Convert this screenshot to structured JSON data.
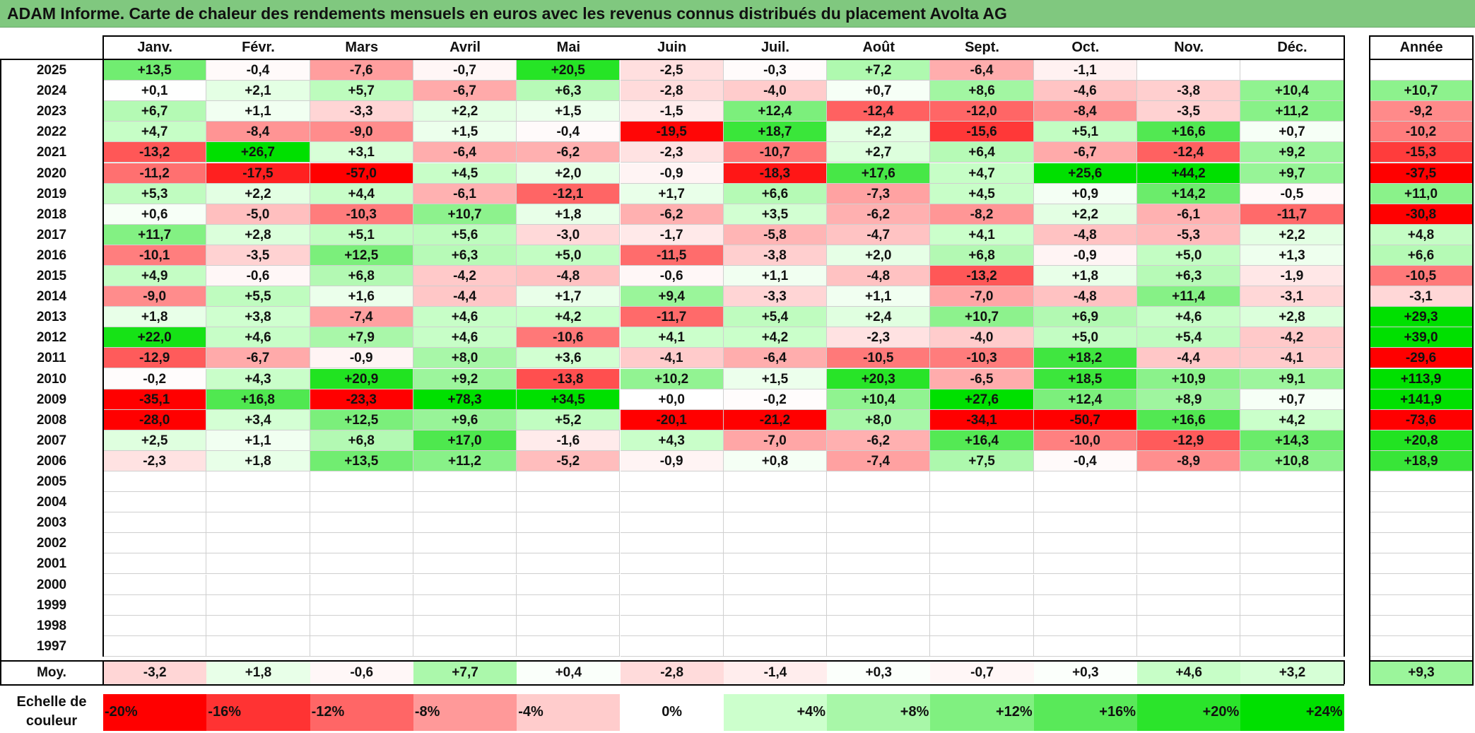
{
  "title": "ADAM Informe. Carte de chaleur des rendements mensuels en euros avec les revenus connus distribués du placement Avolta AG",
  "months": [
    "Janv.",
    "Févr.",
    "Mars",
    "Avril",
    "Mai",
    "Juin",
    "Juil.",
    "Août",
    "Sept.",
    "Oct.",
    "Nov.",
    "Déc."
  ],
  "year_header": "Année",
  "average_label": "Moy.",
  "scale_label": "Echelle de couleur",
  "chart_data": {
    "type": "heatmap",
    "title": "ADAM Informe. Carte de chaleur des rendements mensuels en euros avec les revenus connus distribués du placement Avolta AG",
    "columns": [
      "Janv.",
      "Févr.",
      "Mars",
      "Avril",
      "Mai",
      "Juin",
      "Juil.",
      "Août",
      "Sept.",
      "Oct.",
      "Nov.",
      "Déc."
    ],
    "rows": [
      {
        "year": "2025",
        "months": [
          "+13,5",
          "-0,4",
          "-7,6",
          "-0,7",
          "+20,5",
          "-2,5",
          "-0,3",
          "+7,2",
          "-6,4",
          "-1,1",
          "",
          ""
        ],
        "annual": ""
      },
      {
        "year": "2024",
        "months": [
          "+0,1",
          "+2,1",
          "+5,7",
          "-6,7",
          "+6,3",
          "-2,8",
          "-4,0",
          "+0,7",
          "+8,6",
          "-4,6",
          "-3,8",
          "+10,4"
        ],
        "annual": "+10,7"
      },
      {
        "year": "2023",
        "months": [
          "+6,7",
          "+1,1",
          "-3,3",
          "+2,2",
          "+1,5",
          "-1,5",
          "+12,4",
          "-12,4",
          "-12,0",
          "-8,4",
          "-3,5",
          "+11,2"
        ],
        "annual": "-9,2"
      },
      {
        "year": "2022",
        "months": [
          "+4,7",
          "-8,4",
          "-9,0",
          "+1,5",
          "-0,4",
          "-19,5",
          "+18,7",
          "+2,2",
          "-15,6",
          "+5,1",
          "+16,6",
          "+0,7"
        ],
        "annual": "-10,2"
      },
      {
        "year": "2021",
        "months": [
          "-13,2",
          "+26,7",
          "+3,1",
          "-6,4",
          "-6,2",
          "-2,3",
          "-10,7",
          "+2,7",
          "+6,4",
          "-6,7",
          "-12,4",
          "+9,2"
        ],
        "annual": "-15,3"
      },
      {
        "year": "2020",
        "months": [
          "-11,2",
          "-17,5",
          "-57,0",
          "+4,5",
          "+2,0",
          "-0,9",
          "-18,3",
          "+17,6",
          "+4,7",
          "+25,6",
          "+44,2",
          "+9,7"
        ],
        "annual": "-37,5"
      },
      {
        "year": "2019",
        "months": [
          "+5,3",
          "+2,2",
          "+4,4",
          "-6,1",
          "-12,1",
          "+1,7",
          "+6,6",
          "-7,3",
          "+4,5",
          "+0,9",
          "+14,2",
          "-0,5"
        ],
        "annual": "+11,0"
      },
      {
        "year": "2018",
        "months": [
          "+0,6",
          "-5,0",
          "-10,3",
          "+10,7",
          "+1,8",
          "-6,2",
          "+3,5",
          "-6,2",
          "-8,2",
          "+2,2",
          "-6,1",
          "-11,7"
        ],
        "annual": "-30,8"
      },
      {
        "year": "2017",
        "months": [
          "+11,7",
          "+2,8",
          "+5,1",
          "+5,6",
          "-3,0",
          "-1,7",
          "-5,8",
          "-4,7",
          "+4,1",
          "-4,8",
          "-5,3",
          "+2,2"
        ],
        "annual": "+4,8"
      },
      {
        "year": "2016",
        "months": [
          "-10,1",
          "-3,5",
          "+12,5",
          "+6,3",
          "+5,0",
          "-11,5",
          "-3,8",
          "+2,0",
          "+6,8",
          "-0,9",
          "+5,0",
          "+1,3"
        ],
        "annual": "+6,6"
      },
      {
        "year": "2015",
        "months": [
          "+4,9",
          "-0,6",
          "+6,8",
          "-4,2",
          "-4,8",
          "-0,6",
          "+1,1",
          "-4,8",
          "-13,2",
          "+1,8",
          "+6,3",
          "-1,9"
        ],
        "annual": "-10,5"
      },
      {
        "year": "2014",
        "months": [
          "-9,0",
          "+5,5",
          "+1,6",
          "-4,4",
          "+1,7",
          "+9,4",
          "-3,3",
          "+1,1",
          "-7,0",
          "-4,8",
          "+11,4",
          "-3,1"
        ],
        "annual": "-3,1"
      },
      {
        "year": "2013",
        "months": [
          "+1,8",
          "+3,8",
          "-7,4",
          "+4,6",
          "+4,2",
          "-11,7",
          "+5,4",
          "+2,4",
          "+10,7",
          "+6,9",
          "+4,6",
          "+2,8"
        ],
        "annual": "+29,3"
      },
      {
        "year": "2012",
        "months": [
          "+22,0",
          "+4,6",
          "+7,9",
          "+4,6",
          "-10,6",
          "+4,1",
          "+4,2",
          "-2,3",
          "-4,0",
          "+5,0",
          "+5,4",
          "-4,2"
        ],
        "annual": "+39,0"
      },
      {
        "year": "2011",
        "months": [
          "-12,9",
          "-6,7",
          "-0,9",
          "+8,0",
          "+3,6",
          "-4,1",
          "-6,4",
          "-10,5",
          "-10,3",
          "+18,2",
          "-4,4",
          "-4,1"
        ],
        "annual": "-29,6"
      },
      {
        "year": "2010",
        "months": [
          "-0,2",
          "+4,3",
          "+20,9",
          "+9,2",
          "-13,8",
          "+10,2",
          "+1,5",
          "+20,3",
          "-6,5",
          "+18,5",
          "+10,9",
          "+9,1"
        ],
        "annual": "+113,9"
      },
      {
        "year": "2009",
        "months": [
          "-35,1",
          "+16,8",
          "-23,3",
          "+78,3",
          "+34,5",
          "+0,0",
          "-0,2",
          "+10,4",
          "+27,6",
          "+12,4",
          "+8,9",
          "+0,7"
        ],
        "annual": "+141,9"
      },
      {
        "year": "2008",
        "months": [
          "-28,0",
          "+3,4",
          "+12,5",
          "+9,6",
          "+5,2",
          "-20,1",
          "-21,2",
          "+8,0",
          "-34,1",
          "-50,7",
          "+16,6",
          "+4,2"
        ],
        "annual": "-73,6"
      },
      {
        "year": "2007",
        "months": [
          "+2,5",
          "+1,1",
          "+6,8",
          "+17,0",
          "-1,6",
          "+4,3",
          "-7,0",
          "-6,2",
          "+16,4",
          "-10,0",
          "-12,9",
          "+14,3"
        ],
        "annual": "+20,8"
      },
      {
        "year": "2006",
        "months": [
          "-2,3",
          "+1,8",
          "+13,5",
          "+11,2",
          "-5,2",
          "-0,9",
          "+0,8",
          "-7,4",
          "+7,5",
          "-0,4",
          "-8,9",
          "+10,8"
        ],
        "annual": "+18,9"
      },
      {
        "year": "2005",
        "months": [
          "",
          "",
          "",
          "",
          "",
          "",
          "",
          "",
          "",
          "",
          "",
          ""
        ],
        "annual": ""
      },
      {
        "year": "2004",
        "months": [
          "",
          "",
          "",
          "",
          "",
          "",
          "",
          "",
          "",
          "",
          "",
          ""
        ],
        "annual": ""
      },
      {
        "year": "2003",
        "months": [
          "",
          "",
          "",
          "",
          "",
          "",
          "",
          "",
          "",
          "",
          "",
          ""
        ],
        "annual": ""
      },
      {
        "year": "2002",
        "months": [
          "",
          "",
          "",
          "",
          "",
          "",
          "",
          "",
          "",
          "",
          "",
          ""
        ],
        "annual": ""
      },
      {
        "year": "2001",
        "months": [
          "",
          "",
          "",
          "",
          "",
          "",
          "",
          "",
          "",
          "",
          "",
          ""
        ],
        "annual": ""
      },
      {
        "year": "2000",
        "months": [
          "",
          "",
          "",
          "",
          "",
          "",
          "",
          "",
          "",
          "",
          "",
          ""
        ],
        "annual": ""
      },
      {
        "year": "1999",
        "months": [
          "",
          "",
          "",
          "",
          "",
          "",
          "",
          "",
          "",
          "",
          "",
          ""
        ],
        "annual": ""
      },
      {
        "year": "1998",
        "months": [
          "",
          "",
          "",
          "",
          "",
          "",
          "",
          "",
          "",
          "",
          "",
          ""
        ],
        "annual": ""
      },
      {
        "year": "1997",
        "months": [
          "",
          "",
          "",
          "",
          "",
          "",
          "",
          "",
          "",
          "",
          "",
          ""
        ],
        "annual": ""
      }
    ],
    "average": {
      "months": [
        "-3,2",
        "+1,8",
        "-0,6",
        "+7,7",
        "+0,4",
        "-2,8",
        "-1,4",
        "+0,3",
        "-0,7",
        "+0,3",
        "+4,6",
        "+3,2"
      ],
      "annual": "+9,3"
    },
    "color_scale": [
      {
        "label": "-20%",
        "value": -20,
        "color": "#ff0000"
      },
      {
        "label": "-16%",
        "value": -16,
        "color": "#ff3333"
      },
      {
        "label": "-12%",
        "value": -12,
        "color": "#ff6666"
      },
      {
        "label": "-8%",
        "value": -8,
        "color": "#ff9999"
      },
      {
        "label": "-4%",
        "value": -4,
        "color": "#ffcccc"
      },
      {
        "label": "0%",
        "value": 0,
        "color": "#ffffff"
      },
      {
        "label": "+4%",
        "value": 4,
        "color": "#ccffcc"
      },
      {
        "label": "+8%",
        "value": 8,
        "color": "#a8f7a8"
      },
      {
        "label": "+12%",
        "value": 12,
        "color": "#80f080"
      },
      {
        "label": "+16%",
        "value": 16,
        "color": "#59e959"
      },
      {
        "label": "+20%",
        "value": 20,
        "color": "#2be42b"
      },
      {
        "label": "+24%",
        "value": 24,
        "color": "#00e000"
      }
    ]
  }
}
